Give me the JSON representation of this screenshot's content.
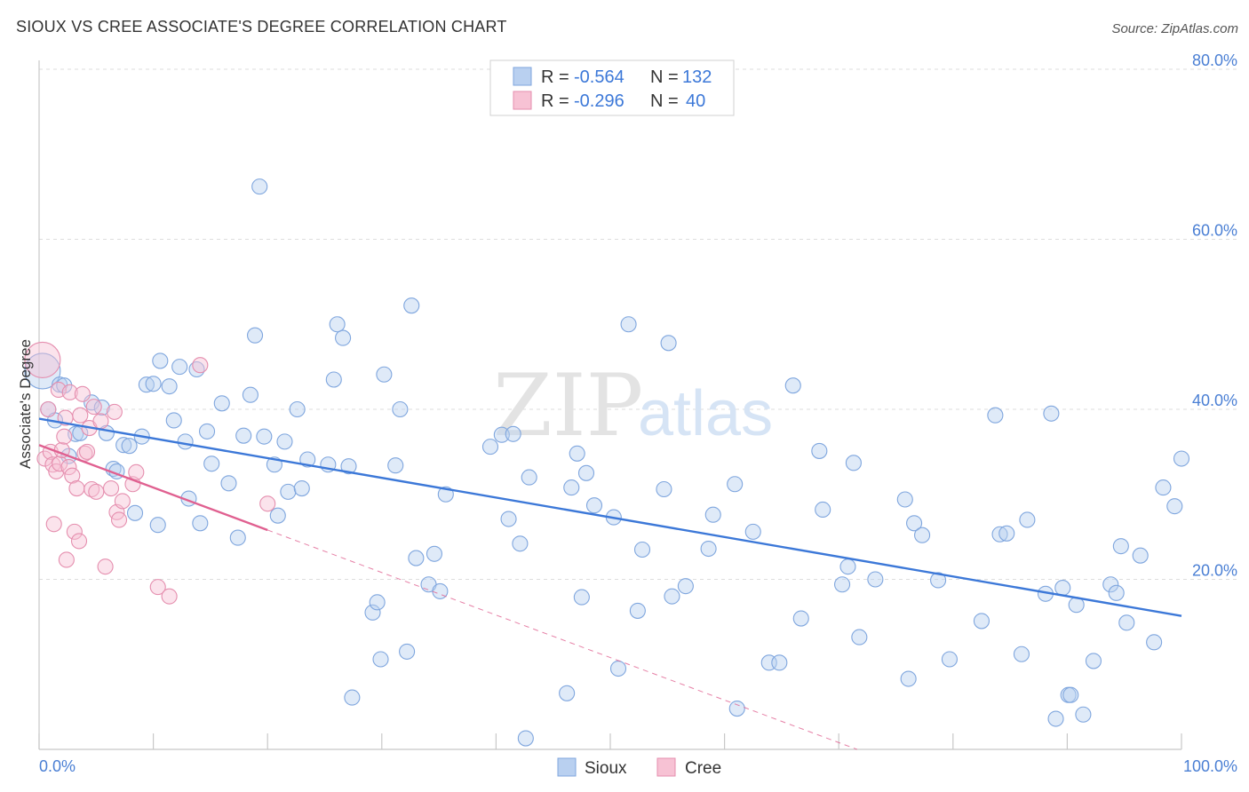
{
  "title": "SIOUX VS CREE ASSOCIATE'S DEGREE CORRELATION CHART",
  "source": "Source: ZipAtlas.com",
  "watermark": {
    "zip": "ZIP",
    "atlas": "atlas"
  },
  "colors": {
    "sioux": "#3c78d8",
    "sioux_fill": "#b9d0f0",
    "cree": "#e06090",
    "cree_fill": "#f7c2d4",
    "tick": "#4a7fd4",
    "grid": "#dddddd"
  },
  "legend": {
    "rows": [
      {
        "r_label": "R =",
        "r_value": "-0.564",
        "n_label": "N =",
        "n_value": "132"
      },
      {
        "r_label": "R =",
        "r_value": "-0.296",
        "n_label": "N =",
        "n_value": "40"
      }
    ]
  },
  "bottom_legend": {
    "sioux": "Sioux",
    "cree": "Cree"
  },
  "chart_data": {
    "type": "scatter",
    "title": "SIOUX VS CREE ASSOCIATE'S DEGREE CORRELATION CHART",
    "xlabel": "",
    "ylabel": "Associate's Degree",
    "xlim": [
      0,
      100
    ],
    "ylim": [
      0,
      80
    ],
    "x_tick_labels": [
      "0.0%",
      "100.0%"
    ],
    "y_ticks": [
      20,
      40,
      60,
      80
    ],
    "y_tick_labels": [
      "20.0%",
      "40.0%",
      "60.0%",
      "80.0%"
    ],
    "grid": true,
    "legend_position": "top-center",
    "series": [
      {
        "name": "Sioux",
        "R": -0.564,
        "N": 132,
        "trend": {
          "x": [
            0,
            100
          ],
          "y": [
            38.9,
            15.7
          ]
        },
        "points": [
          [
            0.3,
            44.5
          ],
          [
            0.8,
            40
          ],
          [
            1.4,
            38.7
          ],
          [
            1.8,
            42.9
          ],
          [
            2.2,
            42.8
          ],
          [
            2.6,
            34.5
          ],
          [
            3.2,
            37.1
          ],
          [
            3.6,
            37.2
          ],
          [
            4.6,
            40.8
          ],
          [
            5.5,
            40.2
          ],
          [
            5.9,
            37.2
          ],
          [
            6.5,
            33
          ],
          [
            6.8,
            32.7
          ],
          [
            7.4,
            35.8
          ],
          [
            7.9,
            35.7
          ],
          [
            8.4,
            27.8
          ],
          [
            9,
            36.8
          ],
          [
            9.4,
            42.9
          ],
          [
            10,
            43
          ],
          [
            10.4,
            26.4
          ],
          [
            10.6,
            45.7
          ],
          [
            11.4,
            42.7
          ],
          [
            11.8,
            38.7
          ],
          [
            12.3,
            45
          ],
          [
            12.8,
            36.2
          ],
          [
            13.1,
            29.5
          ],
          [
            13.8,
            44.7
          ],
          [
            14.1,
            26.6
          ],
          [
            14.7,
            37.4
          ],
          [
            15.1,
            33.6
          ],
          [
            16,
            40.7
          ],
          [
            16.6,
            31.3
          ],
          [
            17.4,
            24.9
          ],
          [
            17.9,
            36.9
          ],
          [
            18.5,
            41.7
          ],
          [
            18.9,
            48.7
          ],
          [
            19.3,
            66.2
          ],
          [
            19.7,
            36.8
          ],
          [
            20.6,
            33.5
          ],
          [
            20.9,
            27.5
          ],
          [
            21.5,
            36.2
          ],
          [
            21.8,
            30.3
          ],
          [
            22.6,
            40
          ],
          [
            23,
            30.7
          ],
          [
            23.5,
            34.1
          ],
          [
            25.3,
            33.5
          ],
          [
            25.8,
            43.5
          ],
          [
            26.1,
            50
          ],
          [
            26.6,
            48.4
          ],
          [
            27.1,
            33.3
          ],
          [
            27.4,
            6.1
          ],
          [
            29.2,
            16.1
          ],
          [
            29.6,
            17.3
          ],
          [
            29.9,
            10.6
          ],
          [
            30.2,
            44.1
          ],
          [
            31.2,
            33.4
          ],
          [
            31.6,
            40
          ],
          [
            32.2,
            11.5
          ],
          [
            32.6,
            52.2
          ],
          [
            33,
            22.5
          ],
          [
            34.1,
            19.4
          ],
          [
            34.6,
            23
          ],
          [
            35.1,
            18.6
          ],
          [
            35.6,
            30
          ],
          [
            39.5,
            35.6
          ],
          [
            40.5,
            37
          ],
          [
            41.1,
            27.1
          ],
          [
            41.5,
            37.1
          ],
          [
            42.1,
            24.2
          ],
          [
            42.6,
            1.3
          ],
          [
            42.9,
            32
          ],
          [
            46.2,
            6.6
          ],
          [
            46.6,
            30.8
          ],
          [
            47.1,
            34.8
          ],
          [
            47.5,
            17.9
          ],
          [
            47.9,
            32.5
          ],
          [
            48.6,
            28.7
          ],
          [
            50.3,
            27.3
          ],
          [
            50.7,
            9.5
          ],
          [
            51.6,
            50
          ],
          [
            52.4,
            16.3
          ],
          [
            52.8,
            23.5
          ],
          [
            54.7,
            30.6
          ],
          [
            55.1,
            47.8
          ],
          [
            55.4,
            18
          ],
          [
            56.6,
            19.2
          ],
          [
            58.6,
            23.6
          ],
          [
            59,
            27.6
          ],
          [
            60.9,
            31.2
          ],
          [
            61.1,
            4.8
          ],
          [
            62.5,
            25.6
          ],
          [
            63.9,
            10.2
          ],
          [
            64.8,
            10.2
          ],
          [
            66,
            42.8
          ],
          [
            66.7,
            15.4
          ],
          [
            68.3,
            35.1
          ],
          [
            68.6,
            28.2
          ],
          [
            70.3,
            19.4
          ],
          [
            70.8,
            21.5
          ],
          [
            71.3,
            33.7
          ],
          [
            71.8,
            13.2
          ],
          [
            73.2,
            20
          ],
          [
            75.8,
            29.4
          ],
          [
            76.1,
            8.3
          ],
          [
            76.6,
            26.6
          ],
          [
            77.3,
            25.2
          ],
          [
            78.7,
            19.9
          ],
          [
            79.7,
            10.6
          ],
          [
            82.5,
            15.1
          ],
          [
            83.7,
            39.3
          ],
          [
            84.1,
            25.3
          ],
          [
            84.7,
            25.4
          ],
          [
            86,
            11.2
          ],
          [
            86.5,
            27
          ],
          [
            88.1,
            18.3
          ],
          [
            88.6,
            39.5
          ],
          [
            89,
            3.6
          ],
          [
            89.6,
            19
          ],
          [
            90.1,
            6.4
          ],
          [
            90.3,
            6.4
          ],
          [
            90.8,
            17
          ],
          [
            91.4,
            4.1
          ],
          [
            92.3,
            10.4
          ],
          [
            93.8,
            19.4
          ],
          [
            94.3,
            18.4
          ],
          [
            94.7,
            23.9
          ],
          [
            95.2,
            14.9
          ],
          [
            96.4,
            22.8
          ],
          [
            97.6,
            12.6
          ],
          [
            98.4,
            30.8
          ],
          [
            99.4,
            28.6
          ],
          [
            100,
            34.2
          ]
        ]
      },
      {
        "name": "Cree",
        "R": -0.296,
        "N": 40,
        "trend": {
          "x": [
            0,
            20
          ],
          "y": [
            35.8,
            25.8
          ]
        },
        "points": [
          [
            0.3,
            45.8
          ],
          [
            0.5,
            34.2
          ],
          [
            0.8,
            40
          ],
          [
            1,
            35
          ],
          [
            1.2,
            33.5
          ],
          [
            1.3,
            26.5
          ],
          [
            1.5,
            32.7
          ],
          [
            1.7,
            42.3
          ],
          [
            1.8,
            33.6
          ],
          [
            2,
            35.2
          ],
          [
            2.2,
            36.8
          ],
          [
            2.3,
            39
          ],
          [
            2.4,
            22.3
          ],
          [
            2.6,
            33.2
          ],
          [
            2.7,
            42
          ],
          [
            2.9,
            32.2
          ],
          [
            3.1,
            25.6
          ],
          [
            3.3,
            30.7
          ],
          [
            3.5,
            24.5
          ],
          [
            3.6,
            39.3
          ],
          [
            3.8,
            41.8
          ],
          [
            4,
            34.8
          ],
          [
            4.2,
            35
          ],
          [
            4.4,
            37.8
          ],
          [
            4.6,
            30.6
          ],
          [
            4.8,
            40.3
          ],
          [
            5,
            30.3
          ],
          [
            5.4,
            38.6
          ],
          [
            5.8,
            21.5
          ],
          [
            6.3,
            30.7
          ],
          [
            6.6,
            39.7
          ],
          [
            6.8,
            27.9
          ],
          [
            7,
            27
          ],
          [
            7.3,
            29.2
          ],
          [
            8.2,
            31.2
          ],
          [
            8.5,
            32.6
          ],
          [
            10.4,
            19.1
          ],
          [
            11.4,
            18
          ],
          [
            14.1,
            45.2
          ],
          [
            20,
            28.9
          ]
        ]
      }
    ]
  }
}
